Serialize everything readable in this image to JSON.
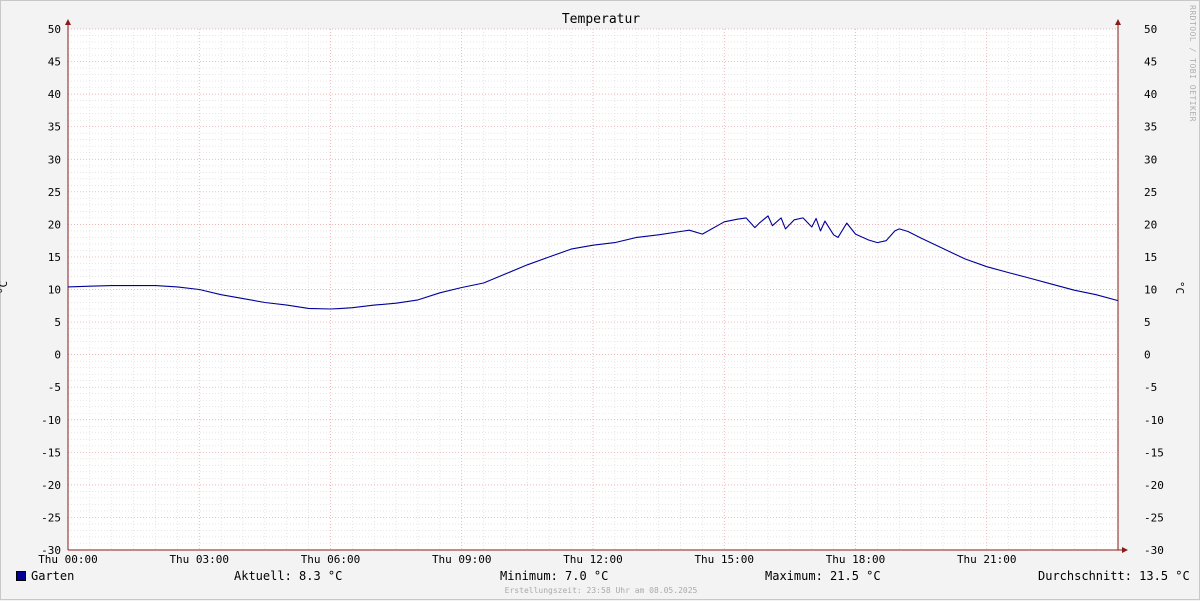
{
  "chart_data": {
    "type": "line",
    "title": "Temperatur",
    "ylabel": "°C",
    "ylim": [
      -30,
      50
    ],
    "y_ticks": [
      50,
      45,
      40,
      35,
      30,
      25,
      20,
      15,
      10,
      5,
      0,
      -5,
      -10,
      -15,
      -20,
      -25,
      -30
    ],
    "xlim_hours": [
      0,
      24
    ],
    "x_tick_labels": [
      "Thu 00:00",
      "Thu 03:00",
      "Thu 06:00",
      "Thu 09:00",
      "Thu 12:00",
      "Thu 15:00",
      "Thu 18:00",
      "Thu 21:00"
    ],
    "grid": true,
    "series": [
      {
        "name": "Garten",
        "color": "#000099",
        "x": [
          0,
          0.5,
          1,
          1.5,
          2,
          2.5,
          3,
          3.5,
          4,
          4.5,
          5,
          5.5,
          6,
          6.25,
          6.5,
          7,
          7.5,
          8,
          8.5,
          9,
          9.5,
          10,
          10.5,
          11,
          11.5,
          12,
          12.5,
          13,
          13.5,
          14,
          14.2,
          14.5,
          15,
          15.3,
          15.5,
          15.7,
          15.8,
          16.0,
          16.1,
          16.3,
          16.4,
          16.6,
          16.8,
          17.0,
          17.1,
          17.2,
          17.3,
          17.5,
          17.6,
          17.8,
          18.0,
          18.3,
          18.5,
          18.7,
          18.9,
          19.0,
          19.2,
          19.5,
          20,
          20.5,
          21,
          21.5,
          22,
          22.5,
          23,
          23.5,
          24
        ],
        "y": [
          10.4,
          10.5,
          10.6,
          10.6,
          10.6,
          10.4,
          10.0,
          9.2,
          8.6,
          8.0,
          7.6,
          7.1,
          7.0,
          7.1,
          7.2,
          7.6,
          7.9,
          8.4,
          9.5,
          10.3,
          11.0,
          12.4,
          13.8,
          15.0,
          16.2,
          16.8,
          17.2,
          18.0,
          18.4,
          18.9,
          19.1,
          18.5,
          20.4,
          20.8,
          21.0,
          19.5,
          20.2,
          21.3,
          19.8,
          21.0,
          19.3,
          20.7,
          21.0,
          19.6,
          20.9,
          19.0,
          20.5,
          18.4,
          18.0,
          20.2,
          18.5,
          17.6,
          17.2,
          17.5,
          19.0,
          19.3,
          18.9,
          17.9,
          16.3,
          14.7,
          13.5,
          12.6,
          11.7,
          10.8,
          9.9,
          9.2,
          8.3
        ]
      }
    ]
  },
  "legend": {
    "series_name": "Garten",
    "aktuell": "Aktuell: 8.3 °C",
    "minimum": "Minimum: 7.0 °C",
    "maximum": "Maximum: 21.5 °C",
    "durchschnitt": "Durchschnitt: 13.5 °C"
  },
  "watermark": "RRDTOOL / TOBI OETIKER",
  "footer": "Erstellungszeit: 23:58 Uhr am 08.05.2025"
}
